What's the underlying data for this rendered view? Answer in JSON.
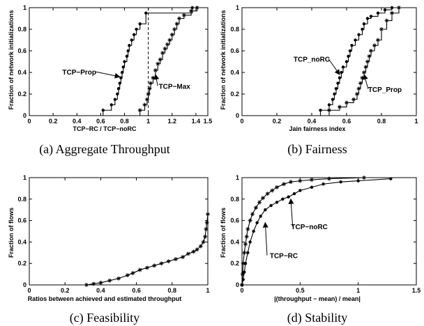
{
  "chart_data": [
    {
      "type": "line",
      "caption": "(a) Aggregate Throughput",
      "xlabel": "TCP−RC / TCP−noRC",
      "ylabel": "Fraction of network initializations",
      "xlim": [
        0,
        1.5
      ],
      "ylim": [
        0,
        1
      ],
      "xticks": [
        {
          "value": 0,
          "label": "0"
        },
        {
          "value": 0.2,
          "label": "0.2"
        },
        {
          "value": 0.4,
          "label": "0.4"
        },
        {
          "value": 0.6,
          "label": "0.6"
        },
        {
          "value": 0.8,
          "label": "0.8"
        },
        {
          "value": 1,
          "label": "1"
        },
        {
          "value": 1.2,
          "label": "1.2"
        },
        {
          "value": 1.4,
          "label": "1.4"
        },
        {
          "value": 1.5,
          "label": "1.5"
        }
      ],
      "yticks": [
        {
          "value": 0,
          "label": "0"
        },
        {
          "value": 0.2,
          "label": "0.2"
        },
        {
          "value": 0.4,
          "label": "0.4"
        },
        {
          "value": 0.6,
          "label": "0.6"
        },
        {
          "value": 0.8,
          "label": "0.8"
        },
        {
          "value": 1,
          "label": "1"
        }
      ],
      "vline": 1.0,
      "series": [
        {
          "marker": "dot",
          "step": true,
          "x": [
            0.62,
            0.69,
            0.72,
            0.74,
            0.75,
            0.76,
            0.77,
            0.78,
            0.79,
            0.8,
            0.82,
            0.83,
            0.84,
            0.86,
            0.88,
            0.9,
            0.93,
            0.98,
            1.37
          ],
          "y": [
            0.05,
            0.1,
            0.15,
            0.2,
            0.25,
            0.3,
            0.35,
            0.4,
            0.45,
            0.5,
            0.55,
            0.6,
            0.65,
            0.7,
            0.75,
            0.8,
            0.85,
            0.95,
            1.0
          ]
        },
        {
          "marker": "star",
          "step": true,
          "x": [
            0.93,
            0.97,
            0.99,
            1.0,
            1.01,
            1.02,
            1.04,
            1.06,
            1.08,
            1.1,
            1.12,
            1.14,
            1.16,
            1.18,
            1.2,
            1.22,
            1.24,
            1.26,
            1.3,
            1.36,
            1.41
          ],
          "y": [
            0.05,
            0.1,
            0.15,
            0.2,
            0.25,
            0.3,
            0.35,
            0.42,
            0.48,
            0.52,
            0.58,
            0.62,
            0.66,
            0.7,
            0.75,
            0.8,
            0.85,
            0.9,
            0.93,
            0.97,
            1.0
          ]
        }
      ],
      "annotations": [
        {
          "text": "TCP−Prop",
          "x": 0.42,
          "y": 0.38,
          "ax": 0.76,
          "ay": 0.36
        },
        {
          "text": "TCP−Max",
          "x": 1.22,
          "y": 0.25,
          "ax": 1.06,
          "ay": 0.38
        }
      ]
    },
    {
      "type": "line",
      "caption": "(b) Fairness",
      "xlabel": "Jain fairness index",
      "ylabel": "Fraction of network initializations",
      "xlim": [
        0,
        1
      ],
      "ylim": [
        0,
        1
      ],
      "xticks": [
        {
          "value": 0,
          "label": "0"
        },
        {
          "value": 0.2,
          "label": "0.2"
        },
        {
          "value": 0.4,
          "label": "0.4"
        },
        {
          "value": 0.6,
          "label": "0.6"
        },
        {
          "value": 0.8,
          "label": "0.8"
        },
        {
          "value": 1,
          "label": "1"
        }
      ],
      "yticks": [
        {
          "value": 0,
          "label": "0"
        },
        {
          "value": 0.2,
          "label": "0.2"
        },
        {
          "value": 0.4,
          "label": "0.4"
        },
        {
          "value": 0.6,
          "label": "0.6"
        },
        {
          "value": 0.8,
          "label": "0.8"
        },
        {
          "value": 1,
          "label": "1"
        }
      ],
      "series": [
        {
          "marker": "dot",
          "step": true,
          "x": [
            0.45,
            0.5,
            0.52,
            0.53,
            0.54,
            0.55,
            0.56,
            0.57,
            0.58,
            0.6,
            0.61,
            0.62,
            0.63,
            0.65,
            0.67,
            0.69,
            0.7,
            0.72,
            0.74,
            0.78,
            0.82,
            0.86
          ],
          "y": [
            0.05,
            0.1,
            0.15,
            0.2,
            0.25,
            0.3,
            0.35,
            0.4,
            0.45,
            0.5,
            0.55,
            0.6,
            0.65,
            0.7,
            0.75,
            0.8,
            0.85,
            0.9,
            0.92,
            0.95,
            0.98,
            1.0
          ]
        },
        {
          "marker": "star",
          "step": true,
          "x": [
            0.5,
            0.56,
            0.6,
            0.64,
            0.66,
            0.67,
            0.68,
            0.69,
            0.7,
            0.71,
            0.72,
            0.73,
            0.74,
            0.76,
            0.78,
            0.8,
            0.83,
            0.86,
            0.9
          ],
          "y": [
            0.05,
            0.08,
            0.12,
            0.15,
            0.2,
            0.25,
            0.3,
            0.35,
            0.4,
            0.45,
            0.5,
            0.55,
            0.6,
            0.65,
            0.7,
            0.8,
            0.88,
            0.95,
            1.0
          ]
        }
      ],
      "annotations": [
        {
          "text": "TCP_noRC",
          "x": 0.4,
          "y": 0.5,
          "ax": 0.56,
          "ay": 0.38
        },
        {
          "text": "TCP_Prop",
          "x": 0.82,
          "y": 0.22,
          "ax": 0.7,
          "ay": 0.38
        }
      ]
    },
    {
      "type": "line",
      "caption": "(c) Feasibility",
      "xlabel": "Ratios between achieved and estimated throughput",
      "ylabel": "Fraction of flows",
      "xlim": [
        0,
        1
      ],
      "ylim": [
        0,
        1
      ],
      "xticks": [
        {
          "value": 0,
          "label": "0"
        },
        {
          "value": 0.2,
          "label": "0.2"
        },
        {
          "value": 0.4,
          "label": "0.4"
        },
        {
          "value": 0.6,
          "label": "0.6"
        },
        {
          "value": 0.8,
          "label": "0.8"
        },
        {
          "value": 1,
          "label": "1"
        }
      ],
      "yticks": [
        {
          "value": 0,
          "label": "0"
        },
        {
          "value": 0.2,
          "label": "0.2"
        },
        {
          "value": 0.4,
          "label": "0.4"
        },
        {
          "value": 0.6,
          "label": "0.6"
        },
        {
          "value": 0.8,
          "label": "0.8"
        },
        {
          "value": 1,
          "label": "1"
        }
      ],
      "series": [
        {
          "marker": "star",
          "step": false,
          "x": [
            0.32,
            0.36,
            0.4,
            0.45,
            0.5,
            0.55,
            0.58,
            0.62,
            0.66,
            0.7,
            0.74,
            0.78,
            0.82,
            0.86,
            0.89,
            0.92,
            0.94,
            0.96,
            0.975,
            0.985,
            0.99,
            0.995,
            1.0
          ],
          "y": [
            0.0,
            0.01,
            0.02,
            0.04,
            0.06,
            0.09,
            0.11,
            0.14,
            0.16,
            0.18,
            0.2,
            0.22,
            0.24,
            0.26,
            0.29,
            0.31,
            0.33,
            0.36,
            0.4,
            0.45,
            0.52,
            0.58,
            0.66
          ]
        }
      ]
    },
    {
      "type": "line",
      "caption": "(d) Stability",
      "xlabel": "|(throughput − mean) / mean|",
      "ylabel": "Fraction of flows",
      "xlim": [
        0,
        1.5
      ],
      "ylim": [
        0,
        1
      ],
      "xticks": [
        {
          "value": 0,
          "label": "0"
        },
        {
          "value": 0.5,
          "label": "0.5"
        },
        {
          "value": 1,
          "label": "1"
        },
        {
          "value": 1.5,
          "label": "1.5"
        }
      ],
      "yticks": [
        {
          "value": 0,
          "label": "0"
        },
        {
          "value": 0.2,
          "label": "0.2"
        },
        {
          "value": 0.4,
          "label": "0.4"
        },
        {
          "value": 0.6,
          "label": "0.6"
        },
        {
          "value": 0.8,
          "label": "0.8"
        },
        {
          "value": 1,
          "label": "1"
        }
      ],
      "series": [
        {
          "marker": "star",
          "step": false,
          "x": [
            0.0,
            0.005,
            0.01,
            0.02,
            0.03,
            0.04,
            0.05,
            0.07,
            0.09,
            0.12,
            0.15,
            0.18,
            0.22,
            0.26,
            0.3,
            0.36,
            0.42,
            0.5,
            0.6,
            0.75,
            1.05
          ],
          "y": [
            0.0,
            0.1,
            0.2,
            0.3,
            0.38,
            0.45,
            0.52,
            0.6,
            0.66,
            0.72,
            0.77,
            0.81,
            0.85,
            0.88,
            0.91,
            0.94,
            0.96,
            0.97,
            0.98,
            0.99,
            1.0
          ]
        },
        {
          "marker": "dot",
          "step": false,
          "x": [
            0.0,
            0.01,
            0.02,
            0.03,
            0.05,
            0.07,
            0.1,
            0.13,
            0.16,
            0.2,
            0.25,
            0.3,
            0.35,
            0.4,
            0.45,
            0.5,
            0.6,
            0.7,
            0.85,
            1.0,
            1.28
          ],
          "y": [
            0.0,
            0.05,
            0.12,
            0.2,
            0.3,
            0.4,
            0.5,
            0.58,
            0.64,
            0.7,
            0.74,
            0.77,
            0.8,
            0.82,
            0.85,
            0.88,
            0.91,
            0.94,
            0.96,
            0.97,
            0.99
          ]
        }
      ],
      "annotations": [
        {
          "text": "TCP−noRC",
          "x": 0.58,
          "y": 0.52,
          "ax": 0.42,
          "ay": 0.8
        },
        {
          "text": "TCP−RC",
          "x": 0.36,
          "y": 0.25,
          "ax": 0.2,
          "ay": 0.58
        }
      ]
    }
  ]
}
